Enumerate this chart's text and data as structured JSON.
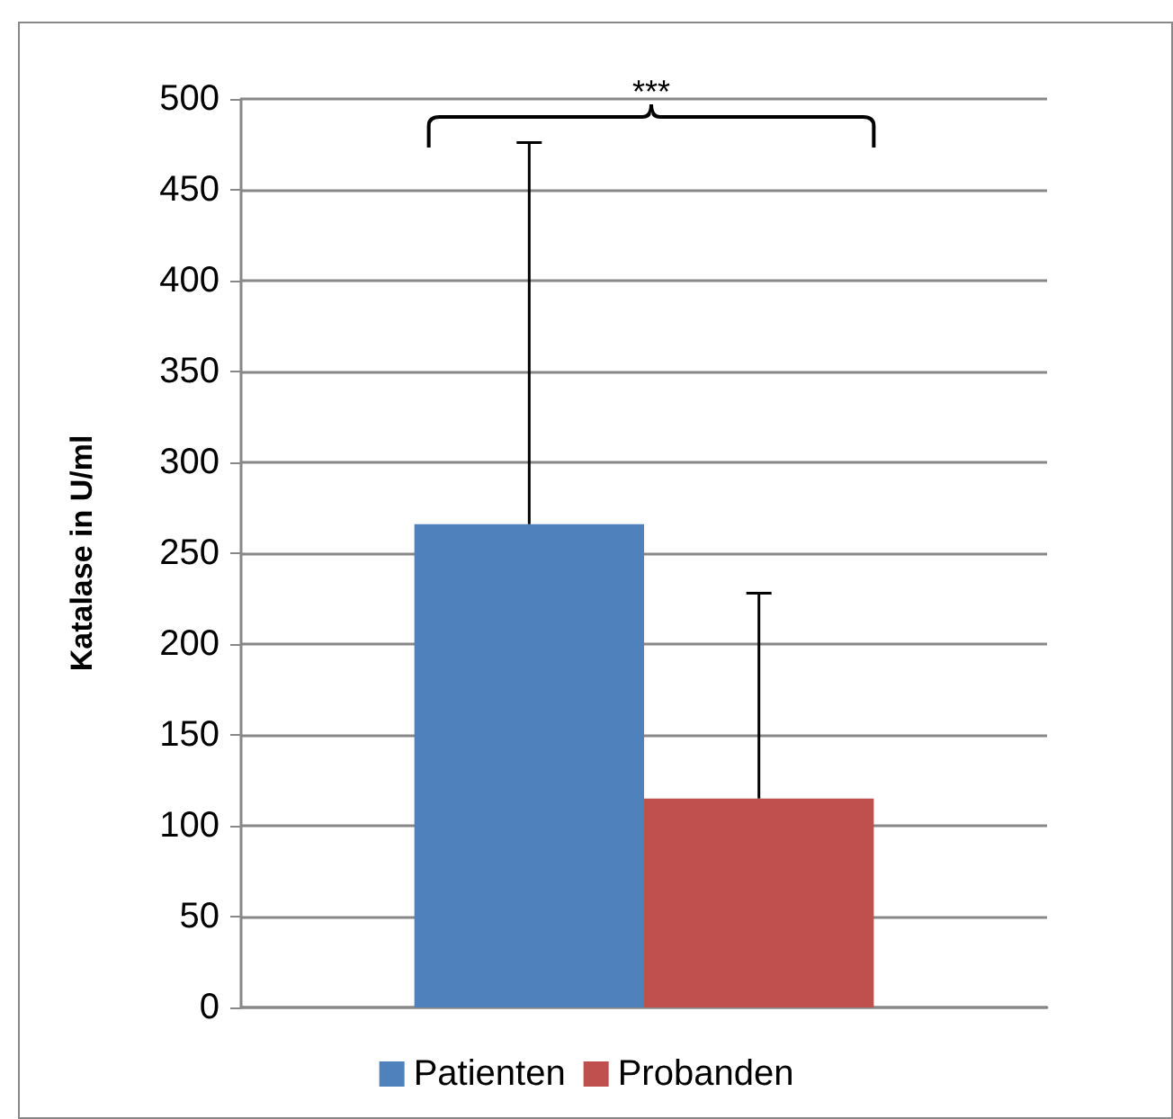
{
  "chart_data": {
    "type": "bar",
    "ylabel": "Katalase in U/ml",
    "categories": [
      null
    ],
    "series": [
      {
        "name": "Patienten",
        "color": "#4f81bd",
        "values": [
          266
        ],
        "errors": [
          [
            266,
            476
          ]
        ]
      },
      {
        "name": "Probanden",
        "color": "#c0504d",
        "values": [
          115
        ],
        "errors": [
          [
            115,
            228
          ]
        ]
      }
    ],
    "ylim": [
      0,
      500
    ],
    "yticks": [
      0,
      50,
      100,
      150,
      200,
      250,
      300,
      350,
      400,
      450,
      500
    ],
    "grid": "y",
    "legend": "bottom",
    "annotations": [
      "***"
    ]
  }
}
